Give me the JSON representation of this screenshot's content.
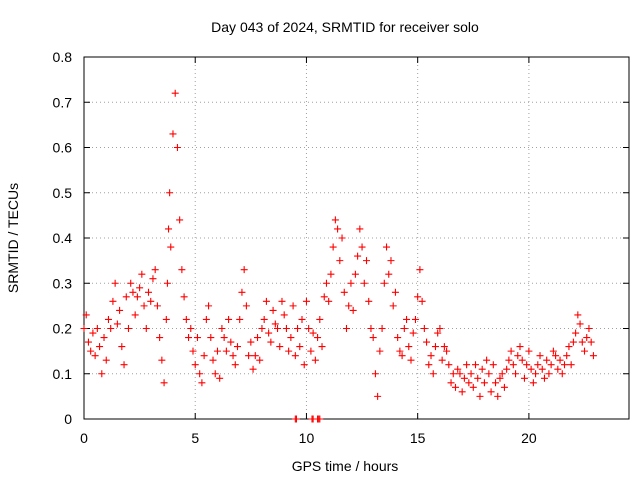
{
  "chart_data": {
    "type": "scatter",
    "title": "Day 043 of 2024, SRMTID for receiver solo",
    "xlabel": "GPS time / hours",
    "ylabel": "SRMTID / TECUs",
    "xlim": [
      0,
      24.5
    ],
    "ylim": [
      0,
      0.8
    ],
    "x_ticks": [
      0,
      5,
      10,
      15,
      20
    ],
    "x_tick_labels": [
      "0",
      "5",
      "10",
      "15",
      "20"
    ],
    "y_ticks": [
      0,
      0.1,
      0.2,
      0.3,
      0.4,
      0.5,
      0.6,
      0.7,
      0.8
    ],
    "y_tick_labels": [
      "0",
      "0.1",
      "0.2",
      "0.3",
      "0.4",
      "0.5",
      "0.6",
      "0.7",
      "0.8"
    ],
    "grid": true,
    "marker": "+",
    "color": "#ff0000",
    "series": [
      {
        "name": "SRMTID",
        "x": [
          0.0,
          0.1,
          0.2,
          0.3,
          0.4,
          0.5,
          0.6,
          0.7,
          0.8,
          0.9,
          1.0,
          1.1,
          1.2,
          1.3,
          1.4,
          1.5,
          1.6,
          1.7,
          1.8,
          1.9,
          2.0,
          2.1,
          2.2,
          2.3,
          2.4,
          2.5,
          2.6,
          2.7,
          2.8,
          2.9,
          3.0,
          3.1,
          3.2,
          3.3,
          3.4,
          3.5,
          3.6,
          3.7,
          3.75,
          3.8,
          3.85,
          3.9,
          4.0,
          4.1,
          4.2,
          4.3,
          4.4,
          4.5,
          4.6,
          4.7,
          4.8,
          4.9,
          5.0,
          5.1,
          5.2,
          5.3,
          5.4,
          5.5,
          5.6,
          5.7,
          5.8,
          5.9,
          6.0,
          6.1,
          6.2,
          6.3,
          6.4,
          6.5,
          6.6,
          6.7,
          6.8,
          6.9,
          7.0,
          7.1,
          7.2,
          7.3,
          7.4,
          7.5,
          7.6,
          7.7,
          7.8,
          7.9,
          8.0,
          8.1,
          8.2,
          8.3,
          8.4,
          8.5,
          8.6,
          8.7,
          8.8,
          8.9,
          9.0,
          9.1,
          9.2,
          9.3,
          9.4,
          9.5,
          9.6,
          9.7,
          9.8,
          9.9,
          10.0,
          10.1,
          10.2,
          10.3,
          10.4,
          10.5,
          10.6,
          10.7,
          10.8,
          10.9,
          11.0,
          11.1,
          11.2,
          11.3,
          11.4,
          11.5,
          11.6,
          11.7,
          11.8,
          11.9,
          12.0,
          12.1,
          12.2,
          12.3,
          12.4,
          12.5,
          12.6,
          12.7,
          12.8,
          12.9,
          13.0,
          13.1,
          13.2,
          13.3,
          13.4,
          13.5,
          13.6,
          13.7,
          13.8,
          13.9,
          14.0,
          14.1,
          14.2,
          14.3,
          14.4,
          14.5,
          14.6,
          14.7,
          14.8,
          14.9,
          15.0,
          15.1,
          15.2,
          15.3,
          15.4,
          15.5,
          15.6,
          15.7,
          15.8,
          15.9,
          16.0,
          16.1,
          16.2,
          16.3,
          16.4,
          16.5,
          16.6,
          16.7,
          16.8,
          16.9,
          17.0,
          17.1,
          17.2,
          17.3,
          17.4,
          17.5,
          17.6,
          17.7,
          17.8,
          17.9,
          18.0,
          18.1,
          18.2,
          18.3,
          18.4,
          18.5,
          18.6,
          18.7,
          18.8,
          18.9,
          19.0,
          19.1,
          19.2,
          19.3,
          19.4,
          19.5,
          19.6,
          19.7,
          19.8,
          19.9,
          20.0,
          20.1,
          20.2,
          20.3,
          20.4,
          20.5,
          20.6,
          20.7,
          20.8,
          20.9,
          21.0,
          21.1,
          21.2,
          21.3,
          21.4,
          21.5,
          21.6,
          21.7,
          21.8,
          21.9,
          22.0,
          22.1,
          22.2,
          22.3,
          22.4,
          22.5,
          22.6,
          22.7,
          22.8,
          22.9,
          9.5,
          9.55,
          10.25,
          10.3,
          10.5,
          10.55,
          10.6
        ],
        "y": [
          0.2,
          0.23,
          0.17,
          0.15,
          0.19,
          0.14,
          0.2,
          0.16,
          0.1,
          0.18,
          0.13,
          0.22,
          0.2,
          0.26,
          0.3,
          0.21,
          0.24,
          0.16,
          0.12,
          0.27,
          0.2,
          0.3,
          0.28,
          0.23,
          0.27,
          0.29,
          0.32,
          0.25,
          0.2,
          0.28,
          0.26,
          0.31,
          0.33,
          0.25,
          0.18,
          0.13,
          0.08,
          0.22,
          0.3,
          0.42,
          0.5,
          0.38,
          0.63,
          0.72,
          0.6,
          0.44,
          0.33,
          0.27,
          0.22,
          0.18,
          0.2,
          0.15,
          0.12,
          0.18,
          0.1,
          0.08,
          0.14,
          0.22,
          0.25,
          0.18,
          0.13,
          0.1,
          0.15,
          0.09,
          0.2,
          0.18,
          0.15,
          0.22,
          0.17,
          0.14,
          0.12,
          0.16,
          0.22,
          0.28,
          0.33,
          0.25,
          0.14,
          0.17,
          0.11,
          0.14,
          0.18,
          0.13,
          0.2,
          0.22,
          0.26,
          0.19,
          0.17,
          0.24,
          0.21,
          0.2,
          0.16,
          0.26,
          0.23,
          0.2,
          0.15,
          0.18,
          0.25,
          0.14,
          0.2,
          0.16,
          0.22,
          0.12,
          0.26,
          0.2,
          0.15,
          0.19,
          0.13,
          0.18,
          0.22,
          0.16,
          0.27,
          0.3,
          0.26,
          0.32,
          0.38,
          0.44,
          0.42,
          0.35,
          0.4,
          0.28,
          0.2,
          0.25,
          0.3,
          0.24,
          0.32,
          0.36,
          0.42,
          0.38,
          0.3,
          0.35,
          0.26,
          0.2,
          0.18,
          0.1,
          0.05,
          0.15,
          0.2,
          0.3,
          0.38,
          0.32,
          0.35,
          0.25,
          0.28,
          0.18,
          0.15,
          0.14,
          0.2,
          0.22,
          0.16,
          0.13,
          0.19,
          0.22,
          0.27,
          0.33,
          0.26,
          0.2,
          0.17,
          0.12,
          0.14,
          0.1,
          0.16,
          0.19,
          0.2,
          0.13,
          0.16,
          0.15,
          0.12,
          0.08,
          0.1,
          0.07,
          0.11,
          0.1,
          0.06,
          0.09,
          0.12,
          0.08,
          0.1,
          0.07,
          0.12,
          0.09,
          0.05,
          0.11,
          0.08,
          0.13,
          0.1,
          0.06,
          0.12,
          0.08,
          0.05,
          0.09,
          0.1,
          0.07,
          0.11,
          0.13,
          0.15,
          0.12,
          0.1,
          0.14,
          0.16,
          0.13,
          0.09,
          0.12,
          0.15,
          0.11,
          0.08,
          0.1,
          0.12,
          0.14,
          0.11,
          0.09,
          0.13,
          0.1,
          0.12,
          0.15,
          0.14,
          0.11,
          0.13,
          0.1,
          0.12,
          0.14,
          0.16,
          0.12,
          0.17,
          0.19,
          0.23,
          0.21,
          0.17,
          0.15,
          0.18,
          0.2,
          0.17,
          0.14,
          0.0,
          0.0,
          0.0,
          0.0,
          0.0,
          0.0,
          0.0
        ]
      }
    ]
  }
}
